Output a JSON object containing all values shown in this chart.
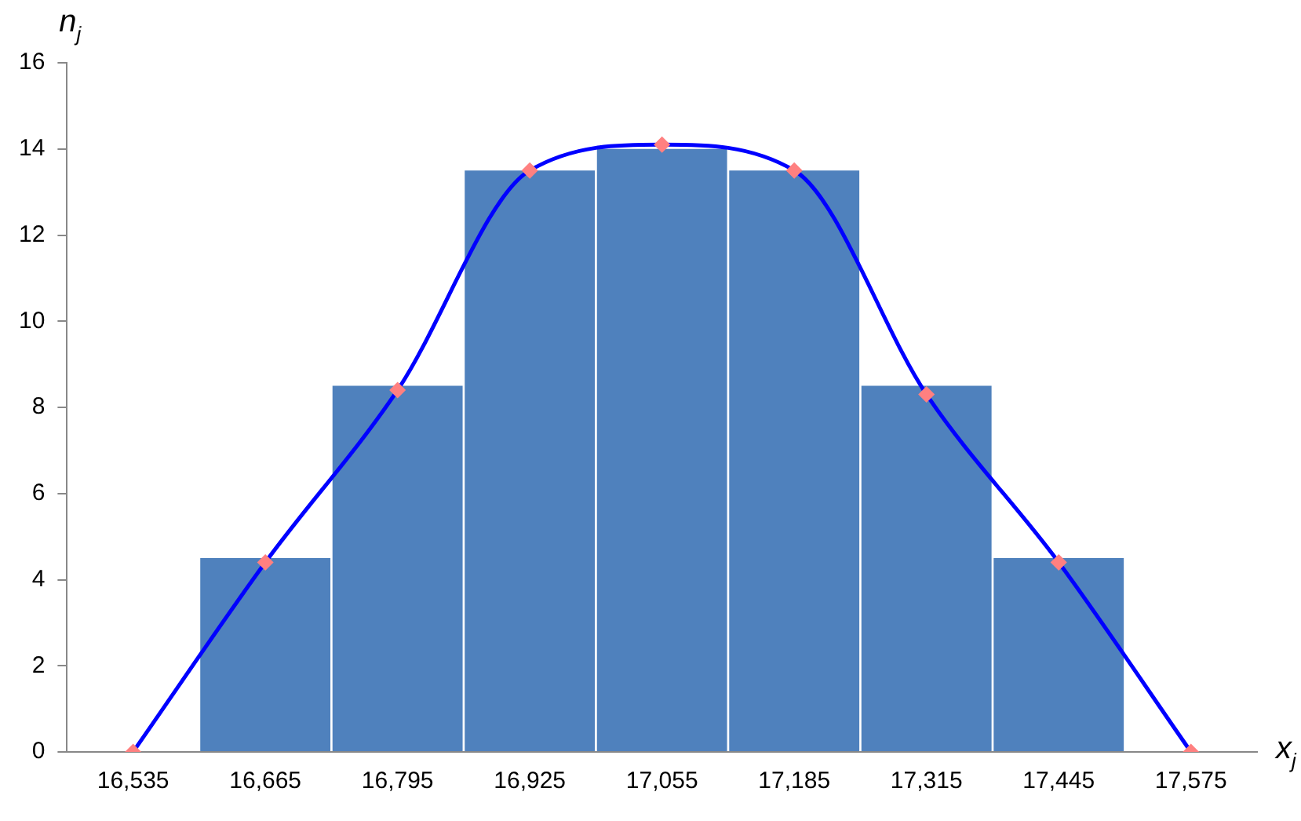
{
  "chart_data": {
    "type": "bar",
    "xlabel": "x$_{j}$",
    "ylabel": "n$_{j}$",
    "categories": [
      "16,535",
      "16,665",
      "16,795",
      "16,925",
      "17,055",
      "17,185",
      "17,315",
      "17,445",
      "17,575"
    ],
    "series": [
      {
        "color": "#4f81bd",
        "values": [
          null,
          4.5,
          8.5,
          13.5,
          14,
          13.5,
          8.5,
          4.5,
          null
        ]
      },
      {
        "type": "line",
        "color": "#0000ff",
        "colors": [
          "#ff8080",
          "#ff8080",
          "#ff8080",
          "#ff8080",
          "#ff8080",
          "#ff8080",
          "#ff8080",
          "#ff8080",
          "#ff8080"
        ],
        "values": [
          0,
          4.4,
          8.4,
          13.5,
          14.1,
          13.5,
          8.3,
          4.4,
          0
        ]
      }
    ],
    "ylim": [
      0,
      16
    ],
    "yticks": [
      0,
      2,
      4,
      6,
      8,
      10,
      12,
      14,
      16
    ],
    "grid": false,
    "legend": false,
    "marker": "diamond",
    "line_style": "solid"
  }
}
